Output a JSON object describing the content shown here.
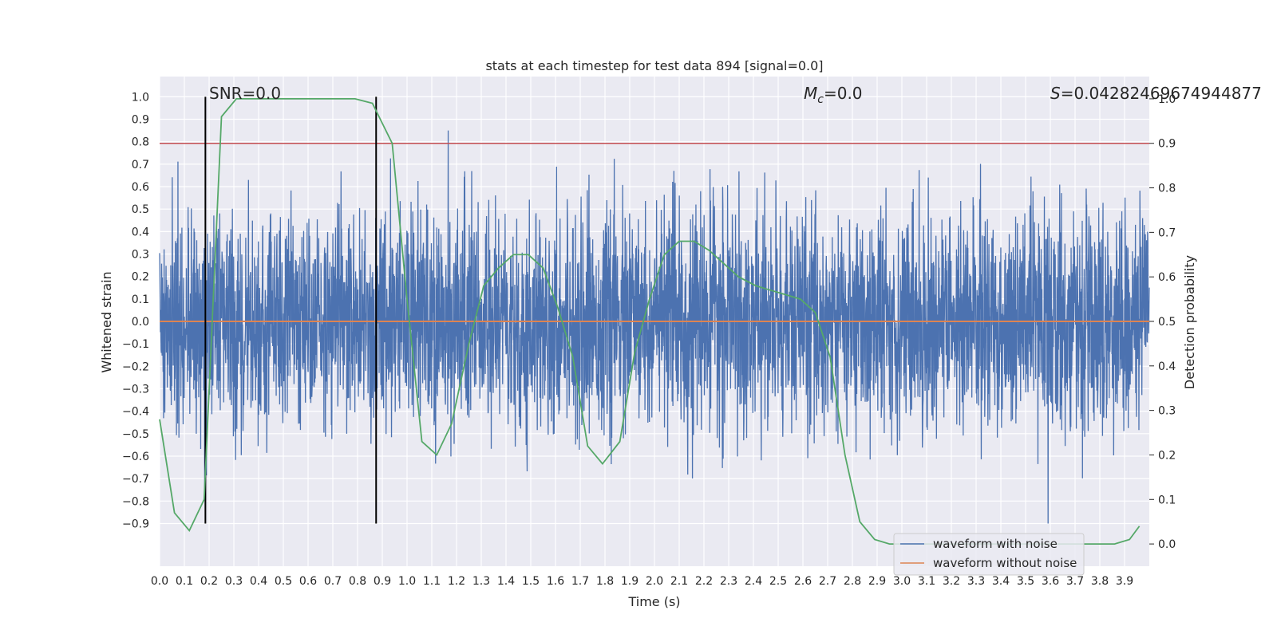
{
  "chart_data": {
    "type": "line",
    "title": "stats at each timestep for test data 894 [signal=0.0]",
    "xlabel": "Time (s)",
    "ylabel": "Whitened strain",
    "y2label": "Detection probability",
    "xlim": [
      0.0,
      4.0
    ],
    "ylim": [
      -1.09,
      1.09
    ],
    "y2lim": [
      -0.05,
      1.05
    ],
    "xticks": [
      "0.0",
      "0.1",
      "0.2",
      "0.3",
      "0.4",
      "0.5",
      "0.6",
      "0.7",
      "0.8",
      "0.9",
      "1.0",
      "1.1",
      "1.2",
      "1.3",
      "1.4",
      "1.5",
      "1.6",
      "1.7",
      "1.8",
      "1.9",
      "2.0",
      "2.1",
      "2.2",
      "2.3",
      "2.4",
      "2.5",
      "2.6",
      "2.7",
      "2.8",
      "2.9",
      "3.0",
      "3.1",
      "3.2",
      "3.3",
      "3.4",
      "3.5",
      "3.6",
      "3.7",
      "3.8",
      "3.9"
    ],
    "yticks": [
      "1.0",
      "0.9",
      "0.8",
      "0.7",
      "0.6",
      "0.5",
      "0.4",
      "0.3",
      "0.2",
      "0.1",
      "0.0",
      "−0.1",
      "−0.2",
      "−0.3",
      "−0.4",
      "−0.5",
      "−0.6",
      "−0.7",
      "−0.8",
      "−0.9"
    ],
    "y2ticks": [
      "1.0",
      "0.9",
      "0.8",
      "0.7",
      "0.6",
      "0.5",
      "0.4",
      "0.3",
      "0.2",
      "0.1",
      "0.0"
    ],
    "grid": true,
    "legend_position": "lower-right",
    "series": [
      {
        "name": "waveform with noise",
        "color": "#4c72b0",
        "kind": "noise",
        "amplitude_range": [
          -0.9,
          0.85
        ]
      },
      {
        "name": "waveform without noise",
        "color": "#dd8452",
        "kind": "flat",
        "value": 0.0
      },
      {
        "color": "#55a868",
        "axis": "right",
        "x": [
          0.0,
          0.06,
          0.12,
          0.18,
          0.25,
          0.31,
          0.37,
          0.43,
          0.49,
          0.55,
          0.61,
          0.67,
          0.73,
          0.79,
          0.86,
          0.94,
          1.0,
          1.06,
          1.12,
          1.18,
          1.25,
          1.31,
          1.37,
          1.43,
          1.49,
          1.55,
          1.61,
          1.67,
          1.73,
          1.79,
          1.86,
          1.92,
          1.98,
          2.04,
          2.1,
          2.16,
          2.22,
          2.28,
          2.34,
          2.41,
          2.47,
          2.53,
          2.59,
          2.65,
          2.71,
          2.77,
          2.83,
          2.89,
          2.95,
          3.01,
          3.07,
          3.14,
          3.2,
          3.26,
          3.32,
          3.38,
          3.44,
          3.5,
          3.56,
          3.62,
          3.68,
          3.74,
          3.8,
          3.86,
          3.92,
          3.96
        ],
        "y": [
          0.28,
          0.07,
          0.03,
          0.1,
          0.96,
          1.0,
          1.0,
          1.0,
          1.0,
          1.0,
          1.0,
          1.0,
          1.0,
          1.0,
          0.99,
          0.9,
          0.55,
          0.23,
          0.2,
          0.27,
          0.45,
          0.58,
          0.62,
          0.65,
          0.65,
          0.62,
          0.53,
          0.42,
          0.22,
          0.18,
          0.23,
          0.43,
          0.55,
          0.65,
          0.68,
          0.68,
          0.66,
          0.63,
          0.6,
          0.58,
          0.57,
          0.56,
          0.55,
          0.52,
          0.42,
          0.2,
          0.05,
          0.01,
          0.0,
          0.0,
          0.0,
          0.0,
          0.0,
          0.0,
          0.0,
          0.0,
          0.0,
          0.0,
          0.0,
          0.0,
          0.0,
          0.0,
          0.0,
          0.0,
          0.01,
          0.04
        ]
      }
    ],
    "vlines": [
      0.185,
      0.875
    ],
    "threshold": 0.9,
    "annotations": {
      "snr": "SNR=0.0",
      "mc": "=0.0",
      "mc_symbol": "M",
      "mc_subscript": "c",
      "s": "=0.04282469674944877",
      "s_symbol": "S"
    },
    "colors": {
      "background": "#eaeaf2",
      "grid": "#ffffff",
      "vline": "#000000",
      "threshold": "#c44e52"
    }
  }
}
